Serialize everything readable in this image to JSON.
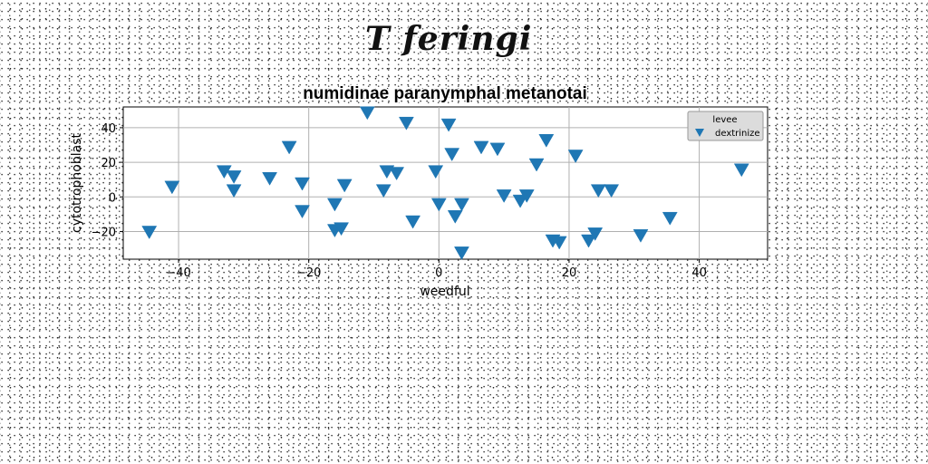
{
  "figure_title": "T feringi",
  "chart_data": {
    "type": "scatter",
    "title": "numidinae paranymphal metanotai",
    "xlabel": "weedful",
    "ylabel": "cytotrophoblast",
    "xlim": [
      -48.5,
      50.5
    ],
    "ylim": [
      -36,
      52
    ],
    "xticks": [
      -40,
      -20,
      0,
      20,
      40
    ],
    "yticks": [
      -20,
      0,
      20,
      40
    ],
    "grid": true,
    "legend": {
      "title": "levee",
      "placement": "top-right"
    },
    "marker": "triangle-down",
    "series": [
      {
        "name": "dextrinize",
        "color": "#1f77b4",
        "points": [
          [
            -44.5,
            -20
          ],
          [
            -41,
            6
          ],
          [
            -33,
            15
          ],
          [
            -31.5,
            12
          ],
          [
            -31.5,
            4
          ],
          [
            -26,
            11
          ],
          [
            -23,
            29
          ],
          [
            -21,
            8
          ],
          [
            -21,
            -8
          ],
          [
            -16,
            -19
          ],
          [
            -16,
            -4
          ],
          [
            -15,
            -18
          ],
          [
            -14.5,
            7
          ],
          [
            -11,
            49
          ],
          [
            -8.5,
            4
          ],
          [
            -8,
            15
          ],
          [
            -6.5,
            14
          ],
          [
            -5,
            43
          ],
          [
            -4,
            -14
          ],
          [
            -0.5,
            15
          ],
          [
            0,
            -4
          ],
          [
            1.5,
            42
          ],
          [
            2,
            25
          ],
          [
            2.5,
            -11
          ],
          [
            3.5,
            -4
          ],
          [
            3.5,
            -32
          ],
          [
            6.5,
            29
          ],
          [
            9,
            28
          ],
          [
            10,
            1
          ],
          [
            12.5,
            -2
          ],
          [
            13.5,
            1
          ],
          [
            15,
            19
          ],
          [
            16.5,
            33
          ],
          [
            17.5,
            -25
          ],
          [
            18.5,
            -26
          ],
          [
            21,
            24
          ],
          [
            23,
            -25
          ],
          [
            24,
            -21
          ],
          [
            24.5,
            4
          ],
          [
            26.5,
            4
          ],
          [
            31,
            -22
          ],
          [
            35.5,
            -12
          ],
          [
            46.5,
            16
          ]
        ]
      }
    ]
  }
}
